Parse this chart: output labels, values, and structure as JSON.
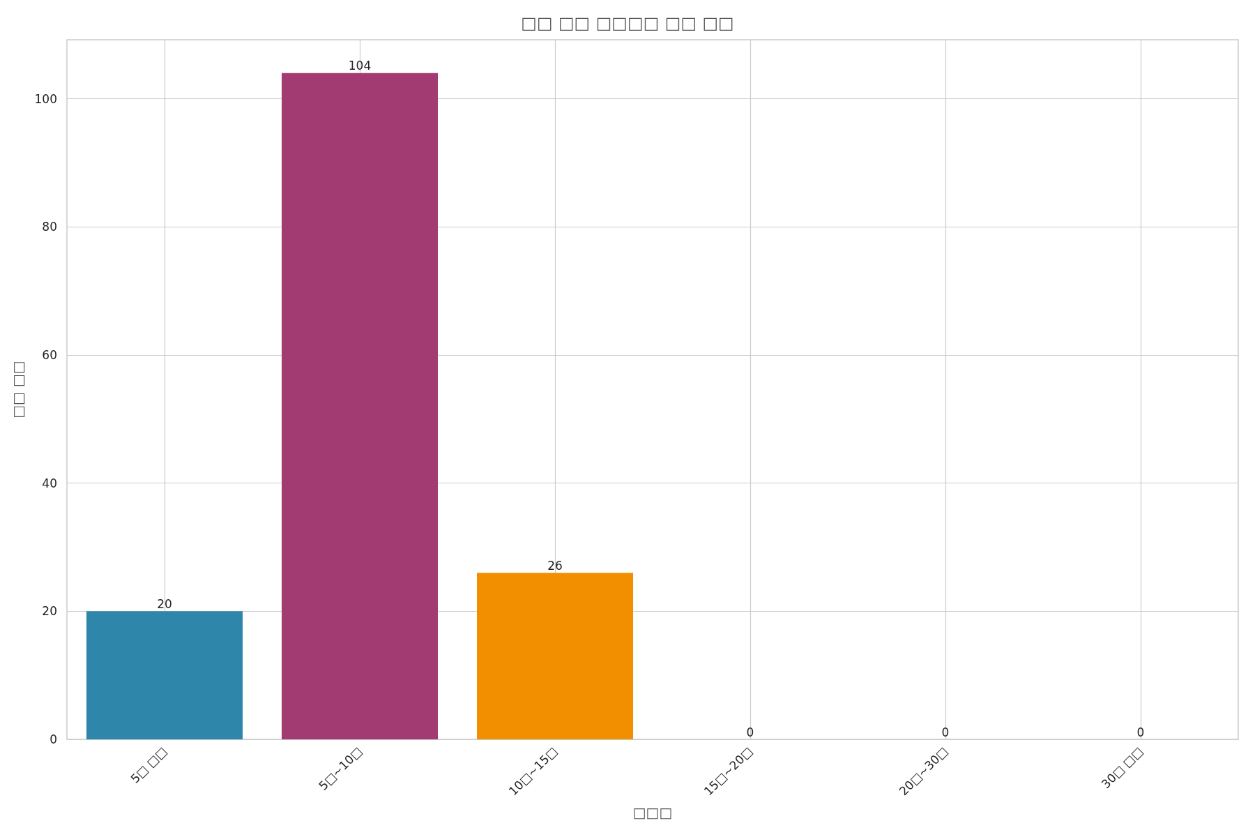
{
  "chart_data": {
    "type": "bar",
    "title": "□□ □□ □□□□ □□ □□",
    "xlabel": "□□□",
    "ylabel": "□□ □□",
    "categories": [
      "5□ □□",
      "5□~10□",
      "10□~15□",
      "15□~20□",
      "20□~30□",
      "30□ □□"
    ],
    "values": [
      20,
      104,
      26,
      0,
      0,
      0
    ],
    "colors": [
      "#2e86ab",
      "#a23b72",
      "#f18f01",
      null,
      null,
      null
    ],
    "ylim": [
      0,
      109.2
    ],
    "yticks": [
      0,
      20,
      40,
      60,
      80,
      100
    ],
    "grid": true,
    "data_labels": true
  }
}
